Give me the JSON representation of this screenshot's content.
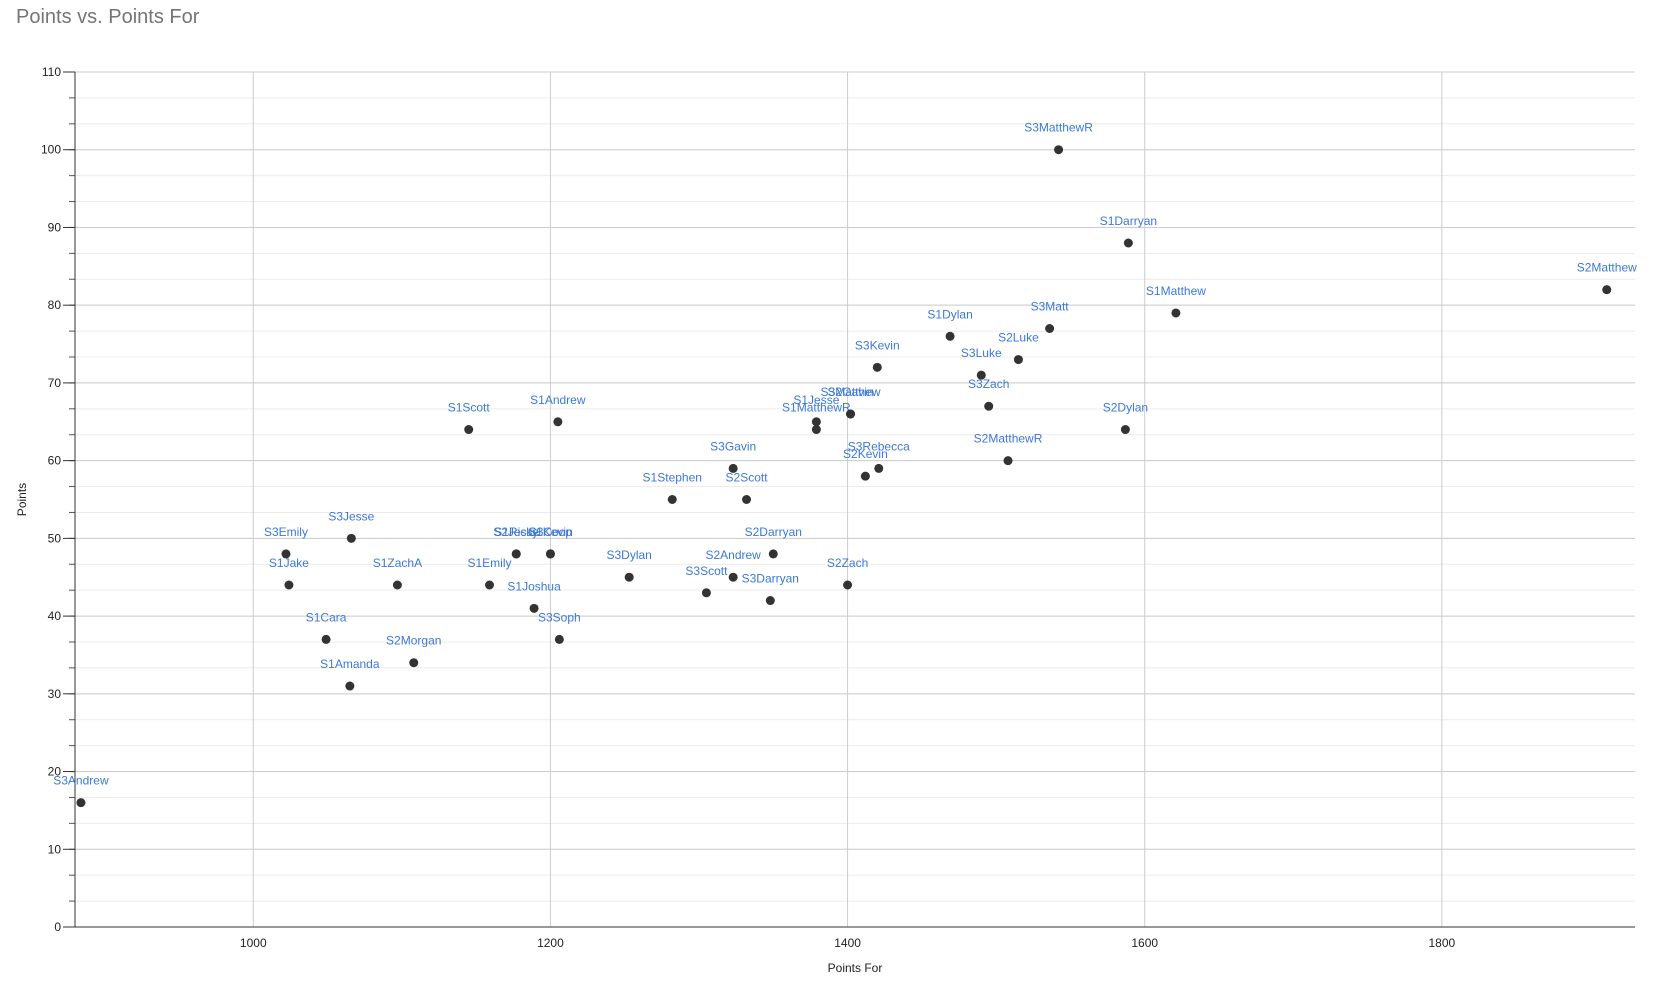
{
  "chart_data": {
    "type": "scatter",
    "title": "Points vs. Points For",
    "xlabel": "Points For",
    "ylabel": "Points",
    "xlim": [
      880,
      1930
    ],
    "ylim": [
      0,
      110
    ],
    "x_ticks": [
      1000,
      1200,
      1400,
      1600,
      1800
    ],
    "y_ticks": [
      0,
      10,
      20,
      30,
      40,
      50,
      60,
      70,
      80,
      90,
      100,
      110
    ],
    "grid": true,
    "legend": "none",
    "point_color": "#333333",
    "label_color": "#3c78d8",
    "points": [
      {
        "label": "S3MatthewR",
        "x": 1542,
        "y": 100
      },
      {
        "label": "S1Darryan",
        "x": 1589,
        "y": 88
      },
      {
        "label": "S2Matthew",
        "x": 1911,
        "y": 82
      },
      {
        "label": "S1Matthew",
        "x": 1621,
        "y": 79
      },
      {
        "label": "S3Matt",
        "x": 1536,
        "y": 77
      },
      {
        "label": "S1Dylan",
        "x": 1469,
        "y": 76
      },
      {
        "label": "S2Luke",
        "x": 1515,
        "y": 73
      },
      {
        "label": "S3Kevin",
        "x": 1420,
        "y": 72
      },
      {
        "label": "S3Luke",
        "x": 1490,
        "y": 71
      },
      {
        "label": "S3Zach",
        "x": 1495,
        "y": 67
      },
      {
        "label": "S3Matthew",
        "x": 1402,
        "y": 66
      },
      {
        "label": "S2Gavin",
        "x": 1402,
        "y": 66
      },
      {
        "label": "S1Jesse",
        "x": 1379,
        "y": 65
      },
      {
        "label": "S1MatthewR",
        "x": 1379,
        "y": 64
      },
      {
        "label": "S2Dylan",
        "x": 1587,
        "y": 64
      },
      {
        "label": "S1Andrew",
        "x": 1205,
        "y": 65
      },
      {
        "label": "S1Scott",
        "x": 1145,
        "y": 64
      },
      {
        "label": "S2MatthewR",
        "x": 1508,
        "y": 60
      },
      {
        "label": "S3Rebecca",
        "x": 1421,
        "y": 59
      },
      {
        "label": "S3Gavin",
        "x": 1323,
        "y": 59
      },
      {
        "label": "S2Kevin",
        "x": 1412,
        "y": 58
      },
      {
        "label": "S1Stephen",
        "x": 1282,
        "y": 55
      },
      {
        "label": "S2Scott",
        "x": 1332,
        "y": 55
      },
      {
        "label": "S3Jesse",
        "x": 1066,
        "y": 50
      },
      {
        "label": "S3Coop",
        "x": 1200,
        "y": 48
      },
      {
        "label": "S1Kevin",
        "x": 1200,
        "y": 48
      },
      {
        "label": "S3Emily",
        "x": 1022,
        "y": 48
      },
      {
        "label": "S1Ricky",
        "x": 1177,
        "y": 48
      },
      {
        "label": "S2Jesse",
        "x": 1177,
        "y": 48
      },
      {
        "label": "S2Darryan",
        "x": 1350,
        "y": 48
      },
      {
        "label": "S1Jake",
        "x": 1024,
        "y": 44
      },
      {
        "label": "S1ZachA",
        "x": 1097,
        "y": 44
      },
      {
        "label": "S1Emily",
        "x": 1159,
        "y": 44
      },
      {
        "label": "S3Dylan",
        "x": 1253,
        "y": 45
      },
      {
        "label": "S2Andrew",
        "x": 1323,
        "y": 45
      },
      {
        "label": "S3Scott",
        "x": 1305,
        "y": 43
      },
      {
        "label": "S2Zach",
        "x": 1400,
        "y": 44
      },
      {
        "label": "S3Darryan",
        "x": 1348,
        "y": 42
      },
      {
        "label": "S1Joshua",
        "x": 1189,
        "y": 41
      },
      {
        "label": "S1Cara",
        "x": 1049,
        "y": 37
      },
      {
        "label": "S3Soph",
        "x": 1206,
        "y": 37
      },
      {
        "label": "S2Morgan",
        "x": 1108,
        "y": 34
      },
      {
        "label": "S1Amanda",
        "x": 1065,
        "y": 31
      },
      {
        "label": "S3Andrew",
        "x": 884,
        "y": 16
      }
    ]
  }
}
